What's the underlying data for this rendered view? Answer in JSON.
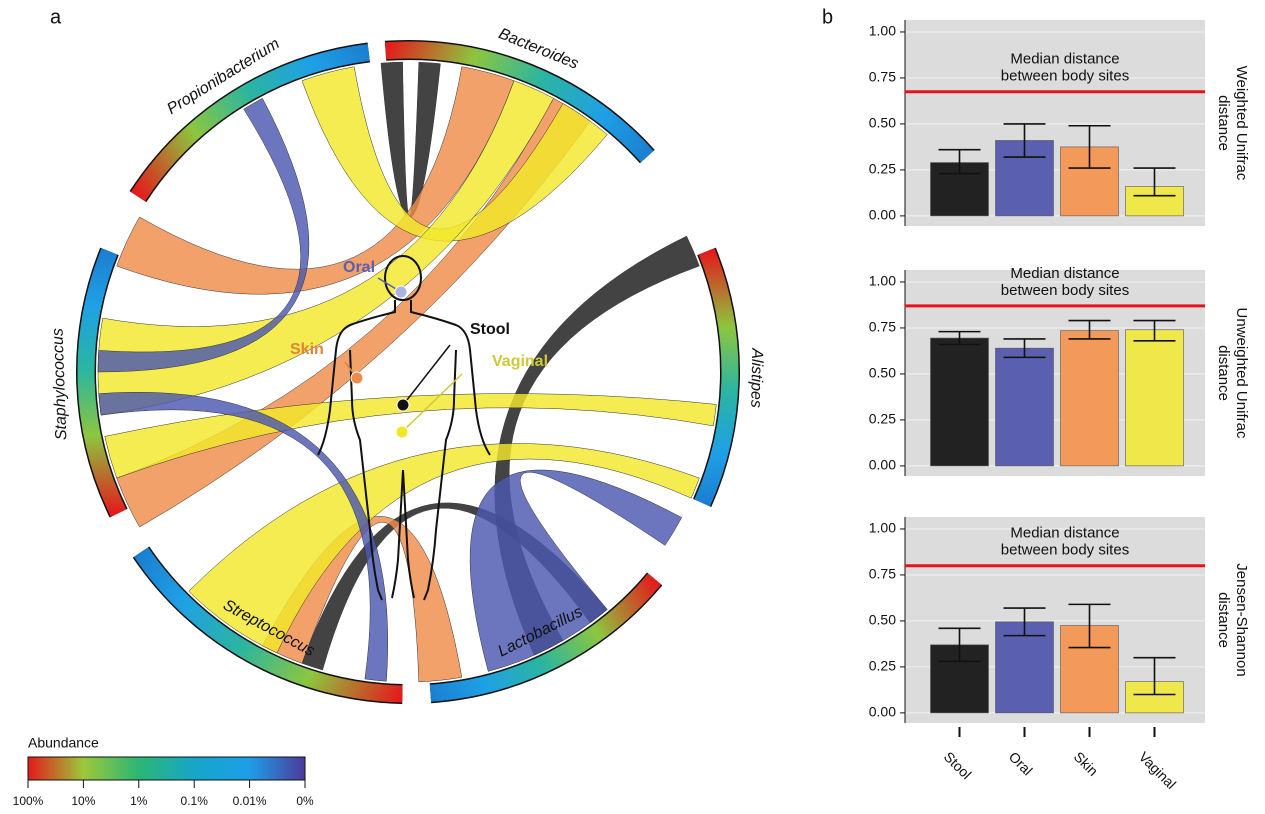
{
  "panel_labels": [
    "a",
    "b"
  ],
  "circos": {
    "genera": [
      "Bacteroides",
      "Alistipes",
      "Lactobacillus",
      "Streptococcus",
      "Staphylococcus",
      "Propionibacterium"
    ],
    "body_sites": [
      "Oral",
      "Skin",
      "Stool",
      "Vaginal"
    ],
    "legend": {
      "title": "Abundance",
      "ticks": [
        "100%",
        "10%",
        "1%",
        "0.1%",
        "0.01%",
        "0%"
      ]
    }
  },
  "chart_data": [
    {
      "type": "bar",
      "ylabel": [
        "Weighted Unifrac",
        "distance"
      ],
      "annotation": [
        "Median distance",
        "between body sites"
      ],
      "hline": 0.675,
      "hline_color": "#e8141c",
      "colors": [
        "#222222",
        "#5a5fb0",
        "#f39a5a",
        "#f0e84a"
      ],
      "values": [
        0.29,
        0.41,
        0.375,
        0.16
      ],
      "err_minus": [
        0.06,
        0.09,
        0.115,
        0.05
      ],
      "err_plus": [
        0.07,
        0.09,
        0.115,
        0.1
      ],
      "ylim": [
        -0.055,
        1.065
      ],
      "yticks": [
        {
          "value": 0,
          "label": "0.00"
        },
        {
          "value": 0.25,
          "label": "0.25"
        },
        {
          "value": 0.5,
          "label": "0.50"
        },
        {
          "value": 0.75,
          "label": "0.75"
        },
        {
          "value": 1,
          "label": "1.00"
        }
      ],
      "grid": true
    },
    {
      "type": "bar",
      "ylabel": [
        "Unweighted Unifrac",
        "distance"
      ],
      "annotation": [
        "Median distance",
        "between body sites"
      ],
      "hline": 0.87,
      "hline_color": "#e8141c",
      "colors": [
        "#222222",
        "#5a5fb0",
        "#f39a5a",
        "#f0e84a"
      ],
      "values": [
        0.695,
        0.64,
        0.735,
        0.74
      ],
      "err_minus": [
        0.035,
        0.05,
        0.045,
        0.06
      ],
      "err_plus": [
        0.035,
        0.05,
        0.055,
        0.05
      ],
      "ylim": [
        -0.055,
        1.065
      ],
      "yticks": [
        {
          "value": 0,
          "label": "0.00"
        },
        {
          "value": 0.25,
          "label": "0.25"
        },
        {
          "value": 0.5,
          "label": "0.50"
        },
        {
          "value": 0.75,
          "label": "0.75"
        },
        {
          "value": 1,
          "label": "1.00"
        }
      ],
      "grid": true
    },
    {
      "type": "bar",
      "ylabel": [
        "Jensen-Shannon",
        "distance"
      ],
      "annotation": [
        "Median distance",
        "between body sites"
      ],
      "hline": 0.8,
      "hline_color": "#e8141c",
      "colors": [
        "#222222",
        "#5a5fb0",
        "#f39a5a",
        "#f0e84a"
      ],
      "categories": [
        "Stool",
        "Oral",
        "Skin",
        "Vaginal"
      ],
      "values": [
        0.37,
        0.495,
        0.475,
        0.17
      ],
      "err_minus": [
        0.09,
        0.075,
        0.12,
        0.07
      ],
      "err_plus": [
        0.09,
        0.075,
        0.115,
        0.13
      ],
      "ylim": [
        -0.055,
        1.065
      ],
      "yticks": [
        {
          "value": 0,
          "label": "0.00"
        },
        {
          "value": 0.25,
          "label": "0.25"
        },
        {
          "value": 0.5,
          "label": "0.50"
        },
        {
          "value": 0.75,
          "label": "0.75"
        },
        {
          "value": 1,
          "label": "1.00"
        }
      ],
      "grid": true
    }
  ]
}
